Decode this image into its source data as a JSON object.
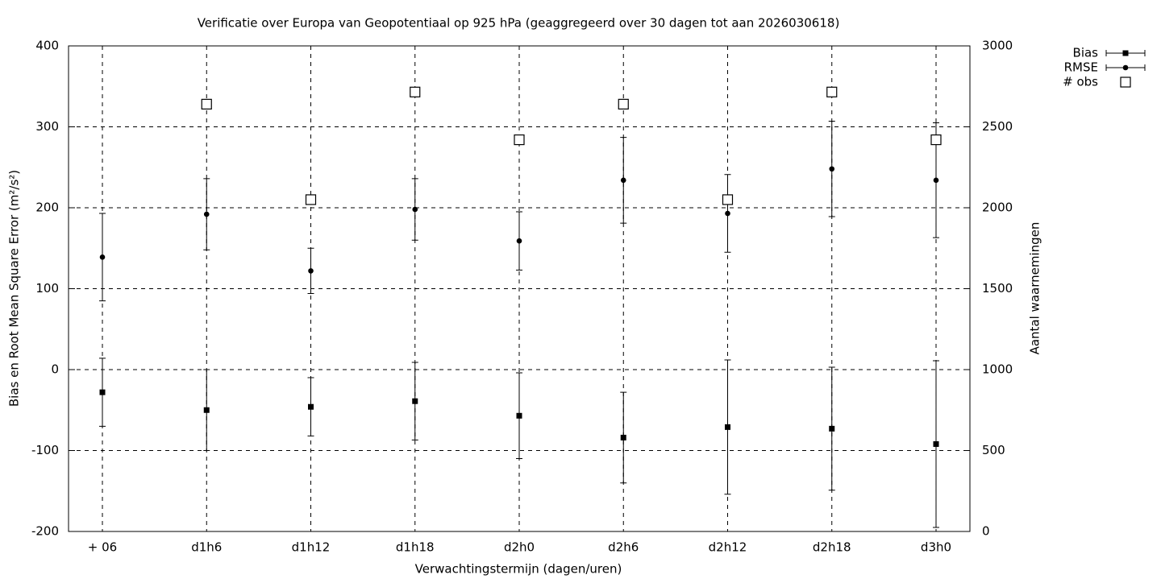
{
  "chart_data": {
    "type": "errorbar",
    "title": "Verificatie over Europa van Geopotentiaal op 925 hPa (geaggregeerd over 30 dagen tot aan 2026030618)",
    "x_label": "Verwachtingstermijn (dagen/uren)",
    "y_label": "Bias en Root Mean Square Error (m²/s²)",
    "y2_label": "Aantal waarnemingen",
    "categories": [
      "+ 06",
      "d1h6",
      "d1h12",
      "d1h18",
      "d2h0",
      "d2h6",
      "d2h12",
      "d2h18",
      "d3h0"
    ],
    "ylim": [
      -200,
      400
    ],
    "yticks": [
      -200,
      -100,
      0,
      100,
      200,
      300,
      400
    ],
    "y2lim": [
      0,
      3000
    ],
    "y2ticks": [
      0,
      500,
      1000,
      1500,
      2000,
      2500,
      3000
    ],
    "grid": true,
    "legend": "top-right",
    "series": [
      {
        "name": "Bias",
        "color": "#000000",
        "marker": "square",
        "values": [
          -28,
          -50,
          -46,
          -39,
          -57,
          -84,
          -71,
          -73,
          -92
        ],
        "errors": [
          42,
          50,
          36,
          48,
          53,
          56,
          83,
          76,
          103
        ]
      },
      {
        "name": "RMSE",
        "color": "#000000",
        "marker": "circle",
        "values": [
          139,
          192,
          122,
          198,
          159,
          234,
          193,
          248,
          234
        ],
        "errors": [
          54,
          44,
          28,
          38,
          36,
          53,
          48,
          59,
          71
        ]
      },
      {
        "name": "# obs",
        "color": "#000000",
        "marker": "open-square",
        "axis": "y2",
        "values": [
          null,
          2640,
          2050,
          2715,
          2420,
          2640,
          2050,
          2715,
          2420
        ]
      }
    ]
  }
}
